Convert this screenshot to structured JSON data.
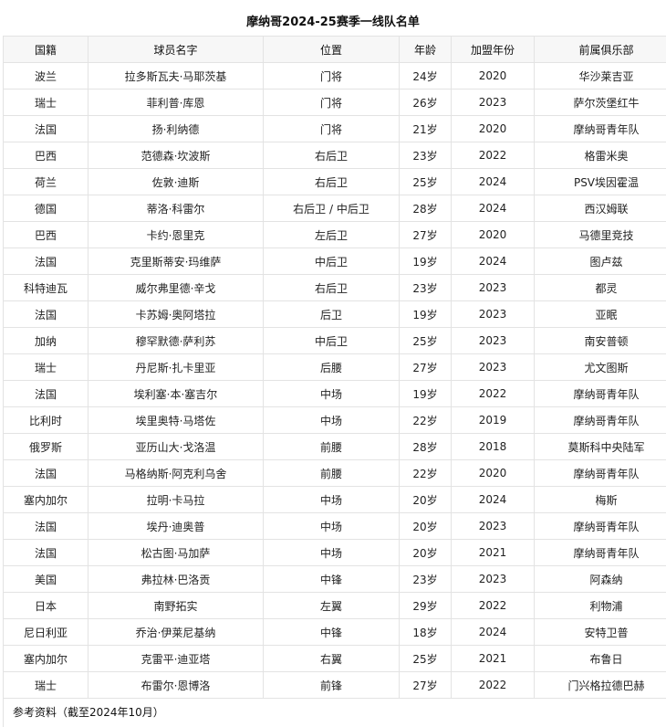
{
  "title": "摩纳哥2024-25赛季一线队名单",
  "columns": [
    "国籍",
    "球员名字",
    "位置",
    "年龄",
    "加盟年份",
    "前属俱乐部"
  ],
  "rows": [
    [
      "波兰",
      "拉多斯瓦夫·马耶茨基",
      "门将",
      "24岁",
      "2020",
      "华沙莱吉亚"
    ],
    [
      "瑞士",
      "菲利普·库恩",
      "门将",
      "26岁",
      "2023",
      "萨尔茨堡红牛"
    ],
    [
      "法国",
      "扬·利纳德",
      "门将",
      "21岁",
      "2020",
      "摩纳哥青年队"
    ],
    [
      "巴西",
      "范德森·坎波斯",
      "右后卫",
      "23岁",
      "2022",
      "格雷米奥"
    ],
    [
      "荷兰",
      "佐敦·迪斯",
      "右后卫",
      "25岁",
      "2024",
      "PSV埃因霍温"
    ],
    [
      "德国",
      "蒂洛·科雷尔",
      "右后卫 / 中后卫",
      "28岁",
      "2024",
      "西汉姆联"
    ],
    [
      "巴西",
      "卡约·恩里克",
      "左后卫",
      "27岁",
      "2020",
      "马德里竞技"
    ],
    [
      "法国",
      "克里斯蒂安·玛维萨",
      "中后卫",
      "19岁",
      "2024",
      "图卢兹"
    ],
    [
      "科特迪瓦",
      "威尔弗里德·辛戈",
      "右后卫",
      "23岁",
      "2023",
      "都灵"
    ],
    [
      "法国",
      "卡苏姆·奥阿塔拉",
      "后卫",
      "19岁",
      "2023",
      "亚眠"
    ],
    [
      "加纳",
      "穆罕默德·萨利苏",
      "中后卫",
      "25岁",
      "2023",
      "南安普顿"
    ],
    [
      "瑞士",
      "丹尼斯·扎卡里亚",
      "后腰",
      "27岁",
      "2023",
      "尤文图斯"
    ],
    [
      "法国",
      "埃利塞·本·塞吉尔",
      "中场",
      "19岁",
      "2022",
      "摩纳哥青年队"
    ],
    [
      "比利时",
      "埃里奥特·马塔佐",
      "中场",
      "22岁",
      "2019",
      "摩纳哥青年队"
    ],
    [
      "俄罗斯",
      "亚历山大·戈洛温",
      "前腰",
      "28岁",
      "2018",
      "莫斯科中央陆军"
    ],
    [
      "法国",
      "马格纳斯·阿克利乌舍",
      "前腰",
      "22岁",
      "2020",
      "摩纳哥青年队"
    ],
    [
      "塞内加尔",
      "拉明·卡马拉",
      "中场",
      "20岁",
      "2024",
      "梅斯"
    ],
    [
      "法国",
      "埃丹·迪奥普",
      "中场",
      "20岁",
      "2023",
      "摩纳哥青年队"
    ],
    [
      "法国",
      "松古图·马加萨",
      "中场",
      "20岁",
      "2021",
      "摩纳哥青年队"
    ],
    [
      "美国",
      "弗拉林·巴洛贡",
      "中锋",
      "23岁",
      "2023",
      "阿森纳"
    ],
    [
      "日本",
      "南野拓实",
      "左翼",
      "29岁",
      "2022",
      "利物浦"
    ],
    [
      "尼日利亚",
      "乔治·伊莱尼基纳",
      "中锋",
      "18岁",
      "2024",
      "安特卫普"
    ],
    [
      "塞内加尔",
      "克雷平·迪亚塔",
      "右翼",
      "25岁",
      "2021",
      "布鲁日"
    ],
    [
      "瑞士",
      "布雷尔·恩博洛",
      "前锋",
      "27岁",
      "2022",
      "门兴格拉德巴赫"
    ]
  ],
  "footer": "参考资料（截至2024年10月）"
}
